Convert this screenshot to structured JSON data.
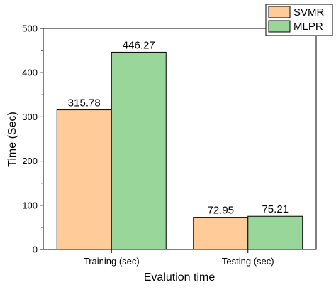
{
  "chart_data": {
    "type": "bar",
    "categories": [
      "Training (sec)",
      "Testing (sec)"
    ],
    "series": [
      {
        "name": "SVMR",
        "values": [
          315.78,
          72.95
        ],
        "labels": [
          "315.78",
          "72.95"
        ],
        "color": "#FFCC99",
        "border": "#000000"
      },
      {
        "name": "MLPR",
        "values": [
          446.27,
          75.21
        ],
        "labels": [
          "446.27",
          "75.21"
        ],
        "color": "#99D699",
        "border": "#000000"
      }
    ],
    "xlabel": "Evalution time",
    "ylabel": "Time (Sec)",
    "ylim": [
      0,
      500
    ],
    "yticks": [
      0,
      100,
      200,
      300,
      400,
      500
    ],
    "minor_yticks": true,
    "grid": false,
    "legend_position": "top-right",
    "frame": "box"
  }
}
